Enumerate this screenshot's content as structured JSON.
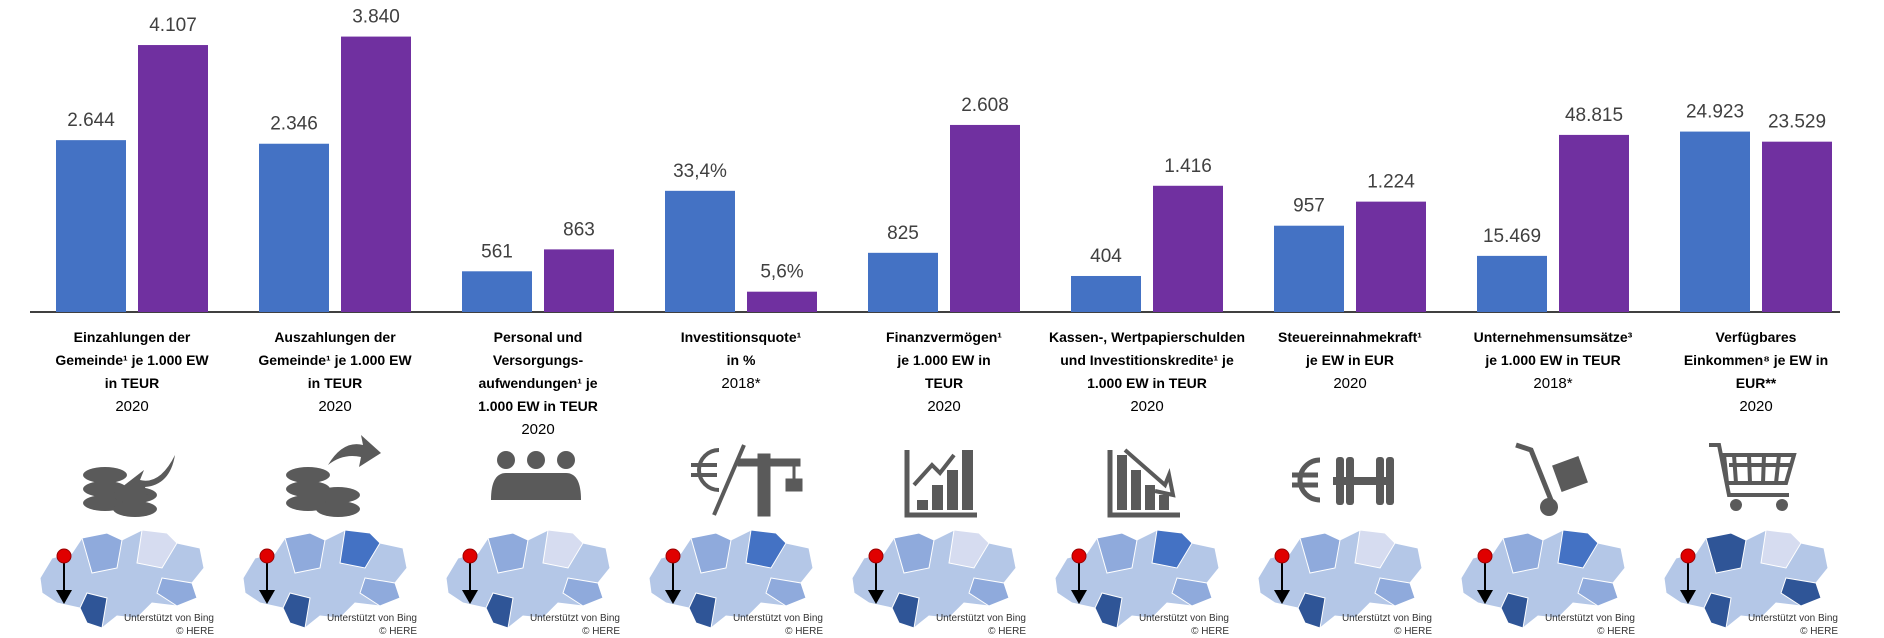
{
  "chart_data": [
    {
      "type": "bar",
      "label": [
        "Einzahlungen der",
        "Gemeinde¹ je 1.000 EW",
        "in TEUR"
      ],
      "year": "2020",
      "values": [
        2644,
        4107
      ],
      "value_labels": [
        "2.644",
        "4.107"
      ],
      "colors": [
        "#4472c4",
        "#7030a0"
      ],
      "ylim": [
        0,
        4800
      ]
    },
    {
      "type": "bar",
      "label": [
        "Auszahlungen der",
        "Gemeinde¹ je 1.000 EW",
        "in TEUR"
      ],
      "year": "2020",
      "values": [
        2346,
        3840
      ],
      "value_labels": [
        "2.346",
        "3.840"
      ],
      "colors": [
        "#4472c4",
        "#7030a0"
      ],
      "ylim": [
        0,
        4350
      ]
    },
    {
      "type": "bar",
      "label": [
        "Personal und",
        "Versorgungs-",
        "aufwendungen¹ je",
        "1.000 EW in TEUR"
      ],
      "year": "2020",
      "values": [
        561,
        863
      ],
      "colors": [
        "#4472c4",
        "#7030a0"
      ],
      "ylim": [
        0,
        4300
      ]
    },
    {
      "type": "bar",
      "label": [
        "Investitionsquote¹",
        "in %"
      ],
      "year": "2018*",
      "values": [
        33.4,
        5.6
      ],
      "value_labels": [
        "33,4%",
        "5,6%"
      ],
      "colors": [
        "#4472c4",
        "#7030a0"
      ],
      "ylim": [
        0,
        86
      ]
    },
    {
      "type": "bar",
      "label": [
        "Finanzvermögen¹",
        "je 1.000 EW in",
        "TEUR"
      ],
      "year": "2020",
      "values": [
        825,
        2608
      ],
      "value_labels": [
        "825",
        "2.608"
      ],
      "colors": [
        "#4472c4",
        "#7030a0"
      ],
      "ylim": [
        0,
        4350
      ]
    },
    {
      "type": "bar",
      "label": [
        "Kassen-, Wertpapierschulden",
        "und Investitionskredite¹ je",
        "1.000 EW in TEUR"
      ],
      "year": "2020",
      "values": [
        404,
        1416
      ],
      "value_labels": [
        "404",
        "1.416"
      ],
      "colors": [
        "#4472c4",
        "#7030a0"
      ],
      "ylim": [
        0,
        3500
      ]
    },
    {
      "type": "bar",
      "label": [
        "Steuereinnahmekraft¹",
        "je EW in EUR"
      ],
      "year": "2020",
      "values": [
        957,
        1224
      ],
      "value_labels": [
        "957",
        "1.224"
      ],
      "colors": [
        "#4472c4",
        "#7030a0"
      ],
      "ylim": [
        0,
        3460
      ]
    },
    {
      "type": "bar",
      "label": [
        "Unternehmensumsätze³",
        "je 1.000 EW in TEUR"
      ],
      "year": "2018*",
      "values": [
        15469,
        48815
      ],
      "value_labels": [
        "15.469",
        "48.815"
      ],
      "colors": [
        "#4472c4",
        "#7030a0"
      ],
      "ylim": [
        0,
        86000
      ]
    },
    {
      "type": "bar",
      "label": [
        "Verfügbares",
        "Einkommen⁸ je EW in",
        "EUR**"
      ],
      "year": "2020",
      "values": [
        24923,
        23529
      ],
      "value_labels": [
        "24.923",
        "23.529"
      ],
      "colors": [
        "#4472c4",
        "#7030a0"
      ],
      "ylim": [
        0,
        43100
      ]
    }
  ],
  "map_credit": [
    "Unterstützt von Bing",
    "© HERE"
  ]
}
